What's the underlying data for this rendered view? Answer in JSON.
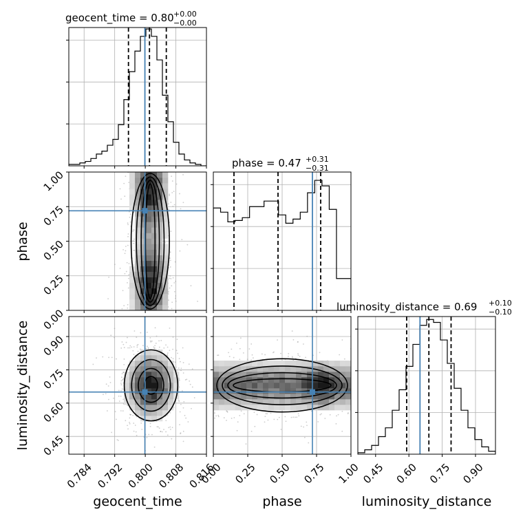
{
  "chart_data": {
    "type": "corner",
    "parameters": [
      "geocent_time",
      "phase",
      "luminosity_distance"
    ],
    "truths": {
      "geocent_time": 0.7999,
      "phase": 0.72,
      "luminosity_distance": 0.65
    },
    "axes": {
      "geocent_time": {
        "label": "geocent_time",
        "range": [
          0.78,
          0.816
        ],
        "ticks": [
          "0.784",
          "0.792",
          "0.800",
          "0.808",
          "0.816"
        ],
        "tick_values": [
          0.784,
          0.792,
          0.8,
          0.808,
          0.816
        ]
      },
      "phase": {
        "label": "phase",
        "range": [
          0.0,
          1.0
        ],
        "ticks": [
          "0.00",
          "0.25",
          "0.50",
          "0.75",
          "1.00"
        ],
        "tick_values": [
          0.0,
          0.25,
          0.5,
          0.75,
          1.0
        ]
      },
      "luminosity_distance": {
        "label": "luminosity_distance",
        "range": [
          0.37,
          0.99
        ],
        "ticks": [
          "0.45",
          "0.60",
          "0.75",
          "0.90"
        ],
        "tick_values": [
          0.45,
          0.6,
          0.75,
          0.9
        ]
      }
    },
    "marginals": {
      "geocent_time": {
        "title_prefix": "geocent_time = 0.80",
        "title_plus": "+0.00",
        "title_minus": "−0.00",
        "quantiles": [
          0.7956,
          0.8011,
          0.8055
        ],
        "hist_counts": [
          1,
          1,
          2,
          3,
          5,
          8,
          10,
          14,
          18,
          28,
          45,
          64,
          78,
          88,
          93,
          88,
          72,
          48,
          30,
          16,
          8,
          4,
          2,
          1,
          0
        ],
        "hist_max": 94
      },
      "phase": {
        "title_prefix": "phase = 0.47",
        "title_plus": "+0.31",
        "title_minus": "−0.31",
        "quantiles": [
          0.15,
          0.47,
          0.78
        ],
        "hist_counts": [
          74,
          71,
          64,
          65,
          67,
          75,
          75,
          79,
          79,
          69,
          63,
          66,
          71,
          85,
          94,
          90,
          73,
          23,
          23
        ],
        "hist_max": 100
      },
      "luminosity_distance": {
        "title_prefix": "luminosity_distance = 0.69",
        "title_plus": "+0.10",
        "title_minus": "−0.10",
        "quantiles": [
          0.59,
          0.69,
          0.79
        ],
        "hist_counts": [
          1,
          3,
          6,
          12,
          18,
          30,
          44,
          60,
          75,
          88,
          92,
          90,
          78,
          62,
          45,
          30,
          18,
          10,
          5,
          2
        ],
        "hist_max": 94
      }
    },
    "joint_2d": [
      {
        "x": "geocent_time",
        "y": "phase",
        "center": [
          0.8013,
          0.45
        ],
        "spread": [
          0.0025,
          0.32
        ]
      },
      {
        "x": "geocent_time",
        "y": "luminosity_distance",
        "center": [
          0.8015,
          0.68
        ],
        "spread": [
          0.0035,
          0.08
        ]
      },
      {
        "x": "phase",
        "y": "luminosity_distance",
        "center": [
          0.5,
          0.68
        ],
        "spread": [
          0.3,
          0.06
        ]
      }
    ],
    "colors": {
      "truth": "#4682b4",
      "hist": "#000000",
      "grid": "#b0b0b0"
    },
    "grid": true
  }
}
